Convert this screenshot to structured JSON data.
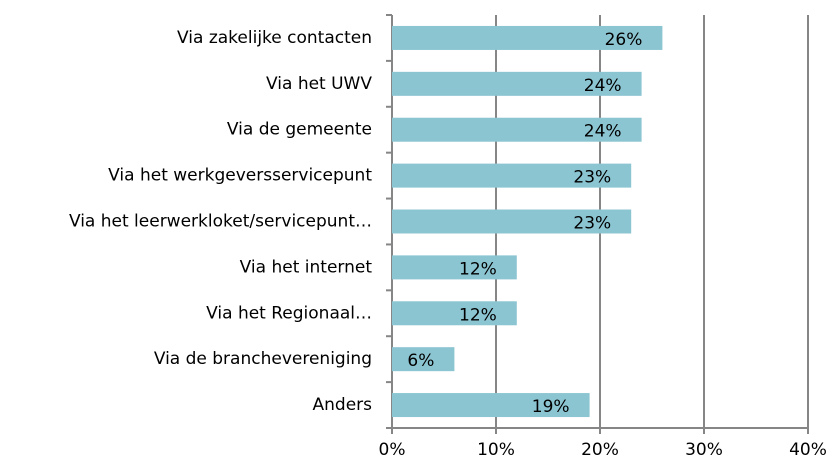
{
  "chart_data": {
    "type": "barh",
    "categories": [
      "Via zakelijke contacten",
      "Via het UWV",
      "Via de gemeente",
      "Via het werkgeversservicepunt",
      "Via het leerwerkloket/servicepunt…",
      "Via het internet",
      "Via het Regionaal…",
      "Via de branchevereniging",
      "Anders"
    ],
    "values": [
      26,
      24,
      24,
      23,
      23,
      12,
      12,
      6,
      19
    ],
    "value_labels": [
      "26%",
      "24%",
      "24%",
      "23%",
      "23%",
      "12%",
      "12%",
      "6%",
      "19%"
    ],
    "color": "#8cc5d2",
    "xlim": [
      0,
      40
    ],
    "xticks": [
      {
        "value": 0,
        "label": "0%"
      },
      {
        "value": 10,
        "label": "10%"
      },
      {
        "value": 20,
        "label": "20%"
      },
      {
        "value": 30,
        "label": "30%"
      },
      {
        "value": 40,
        "label": "40%"
      }
    ],
    "grid": true
  }
}
